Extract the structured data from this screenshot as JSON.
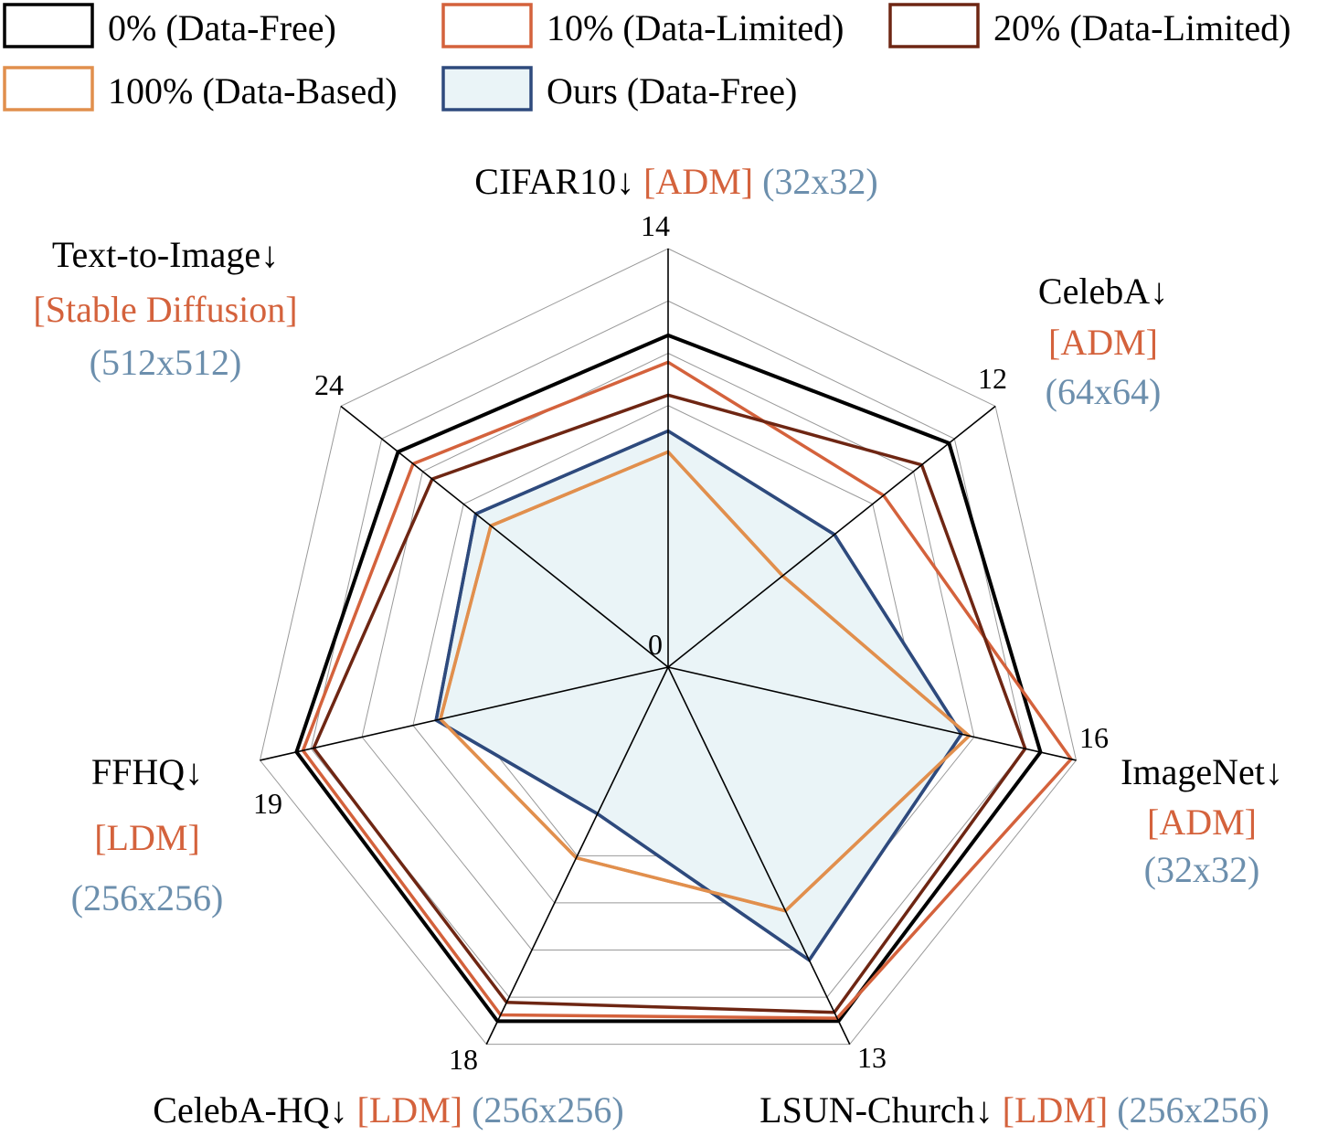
{
  "chart_data": {
    "type": "radar",
    "axes": [
      {
        "name": "CIFAR10↓",
        "model": "[ADM]",
        "resolution": "(32x32)",
        "max_label": "14",
        "max": 14
      },
      {
        "name": "CelebA↓",
        "model": "[ADM]",
        "resolution": "(64x64)",
        "max_label": "12",
        "max": 12
      },
      {
        "name": "ImageNet↓",
        "model": "[ADM]",
        "resolution": "(32x32)",
        "max_label": "16",
        "max": 16
      },
      {
        "name": "LSUN-Church↓",
        "model": "[LDM]",
        "resolution": "(256x256)",
        "max_label": "13",
        "max": 13
      },
      {
        "name": "CelebA-HQ↓",
        "model": "[LDM]",
        "resolution": "(256x256)",
        "max_label": "18",
        "max": 18
      },
      {
        "name": "FFHQ↓",
        "model": "[LDM]",
        "resolution": "(256x256)",
        "max_label": "19",
        "max": 19
      },
      {
        "name": "Text-to-Image↓",
        "model": "[Stable Diffusion]",
        "resolution": "(512x512)",
        "max_label": "24",
        "max": 24
      }
    ],
    "center_label": "0",
    "rlim": [
      0,
      1
    ],
    "grid_rings": 8,
    "series": [
      {
        "name": "0% (Data-Free)",
        "color": "#000000",
        "fill": "none",
        "values": [
          11.1,
          10.3,
          14.6,
          12.2,
          16.9,
          17.3,
          19.8
        ]
      },
      {
        "name": "10% (Data-Limited)",
        "color": "#d4623c",
        "fill": "none",
        "values": [
          10.2,
          7.9,
          15.8,
          12.1,
          16.6,
          17.0,
          18.7
        ]
      },
      {
        "name": "20% (Data-Limited)",
        "color": "#6e2613",
        "fill": "none",
        "values": [
          9.1,
          9.3,
          14.0,
          11.9,
          16.0,
          16.5,
          17.3
        ]
      },
      {
        "name": "100% (Data-Based)",
        "color": "#e18f4d",
        "fill": "none",
        "values": [
          7.2,
          4.2,
          11.8,
          8.4,
          9.1,
          10.6,
          13.0
        ]
      },
      {
        "name": "Ours (Data-Free)",
        "color": "#2e4a7d",
        "fill": "#eaf4f7",
        "values": [
          7.9,
          6.1,
          11.5,
          10.1,
          7.0,
          10.8,
          14.1
        ]
      }
    ],
    "legend_position": "top",
    "colors": {
      "model": "#d4623c",
      "resolution": "#6c8fad",
      "grid": "#999999",
      "axis": "#000000"
    }
  }
}
